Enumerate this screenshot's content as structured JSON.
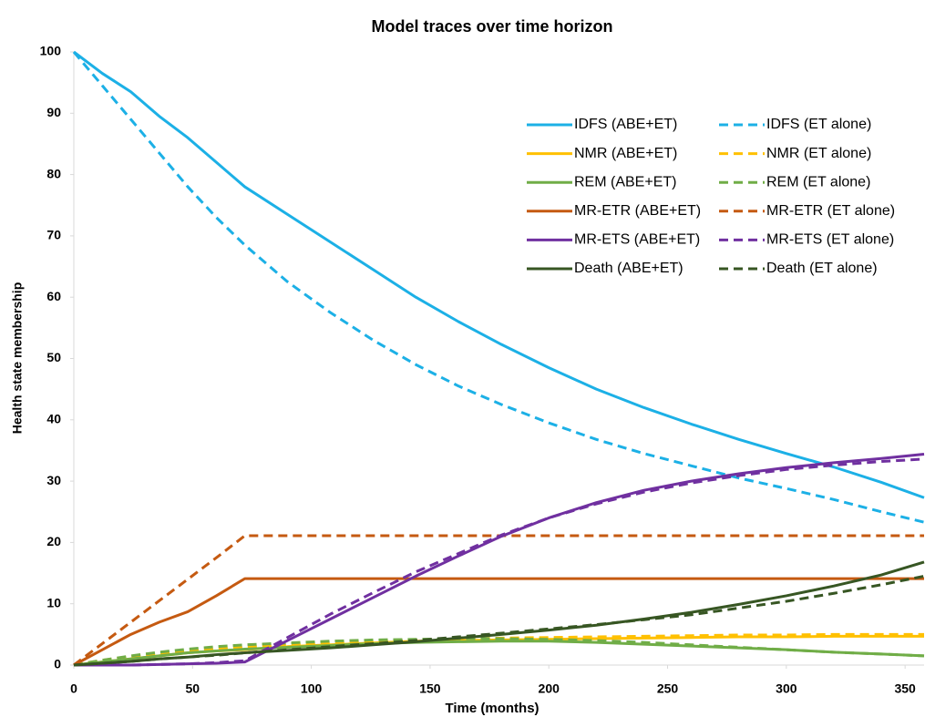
{
  "chart_data": {
    "type": "line",
    "title": "Model traces over time horizon",
    "x_label": "Time (months)",
    "y_label": "Health state membership",
    "x": [
      0,
      12,
      24,
      36,
      48,
      60,
      72,
      90,
      108,
      126,
      144,
      162,
      180,
      200,
      220,
      240,
      260,
      280,
      300,
      320,
      340,
      358
    ],
    "xlim": [
      0,
      358
    ],
    "xticks": [
      0,
      50,
      100,
      150,
      200,
      250,
      300,
      350
    ],
    "ylim": [
      0,
      100
    ],
    "yticks": [
      0,
      10,
      20,
      30,
      40,
      50,
      60,
      70,
      80,
      90,
      100
    ],
    "grid": false,
    "series": [
      {
        "name": "IDFS (ABE+ET)",
        "color": "#1cb0e6",
        "dashed": false,
        "values": [
          100,
          96.5,
          93.5,
          89.5,
          86,
          82,
          78,
          73.5,
          69,
          64.5,
          60,
          56,
          52.3,
          48.5,
          45,
          42,
          39.3,
          36.8,
          34.5,
          32.3,
          29.8,
          27.3
        ]
      },
      {
        "name": "IDFS (ET alone)",
        "color": "#1cb0e6",
        "dashed": true,
        "values": [
          100,
          94.5,
          89,
          83.5,
          78,
          73,
          68.5,
          62.5,
          57.5,
          53,
          49,
          45.5,
          42.5,
          39.5,
          36.8,
          34.5,
          32.5,
          30.5,
          28.8,
          27,
          25,
          23.3
        ]
      },
      {
        "name": "NMR (ABE+ET)",
        "color": "#ffc000",
        "dashed": false,
        "values": [
          0,
          0.5,
          1,
          1.5,
          2,
          2.3,
          2.5,
          3,
          3.3,
          3.6,
          3.9,
          4,
          4.1,
          4.2,
          4.3,
          4.4,
          4.5,
          4.6,
          4.6,
          4.7,
          4.7,
          4.7
        ]
      },
      {
        "name": "NMR (ET alone)",
        "color": "#ffc000",
        "dashed": true,
        "values": [
          0,
          0.8,
          1.4,
          1.9,
          2.3,
          2.6,
          2.9,
          3.3,
          3.6,
          3.9,
          4.1,
          4.3,
          4.4,
          4.5,
          4.6,
          4.7,
          4.8,
          4.9,
          4.9,
          5,
          5,
          5
        ]
      },
      {
        "name": "REM (ABE+ET)",
        "color": "#70ad47",
        "dashed": false,
        "values": [
          0,
          0.5,
          1,
          1.5,
          2,
          2.3,
          2.6,
          2.9,
          3.2,
          3.5,
          3.7,
          3.8,
          3.9,
          3.9,
          3.7,
          3.4,
          3.1,
          2.8,
          2.5,
          2.1,
          1.8,
          1.5
        ]
      },
      {
        "name": "REM (ET alone)",
        "color": "#70ad47",
        "dashed": true,
        "values": [
          0,
          0.8,
          1.5,
          2.1,
          2.6,
          3,
          3.3,
          3.6,
          3.9,
          4.1,
          4.2,
          4.3,
          4.3,
          4.2,
          4,
          3.7,
          3.3,
          2.9,
          2.5,
          2.1,
          1.8,
          1.5
        ]
      },
      {
        "name": "MR-ETR (ABE+ET)",
        "color": "#c55a11",
        "dashed": false,
        "values": [
          0,
          2.5,
          5,
          7,
          8.7,
          11.3,
          14.1,
          14.1,
          14.1,
          14.1,
          14.1,
          14.1,
          14.1,
          14.1,
          14.1,
          14.1,
          14.1,
          14.1,
          14.1,
          14.1,
          14.1,
          14.1
        ]
      },
      {
        "name": "MR-ETR (ET alone)",
        "color": "#c55a11",
        "dashed": true,
        "values": [
          0,
          3.5,
          7,
          10.5,
          14,
          17.5,
          21.1,
          21.1,
          21.1,
          21.1,
          21.1,
          21.1,
          21.1,
          21.1,
          21.1,
          21.1,
          21.1,
          21.1,
          21.1,
          21.1,
          21.1,
          21.1
        ]
      },
      {
        "name": "MR-ETS (ABE+ET)",
        "color": "#7030a0",
        "dashed": false,
        "values": [
          0,
          0,
          0,
          0.1,
          0.2,
          0.3,
          0.5,
          4,
          7.5,
          11,
          14.5,
          17.8,
          21,
          24,
          26.5,
          28.5,
          30,
          31.2,
          32.2,
          33,
          33.7,
          34.4
        ]
      },
      {
        "name": "MR-ETS (ET alone)",
        "color": "#7030a0",
        "dashed": true,
        "values": [
          0,
          0,
          0,
          0.1,
          0.2,
          0.4,
          0.7,
          4.5,
          8.3,
          11.8,
          15.2,
          18.2,
          21.2,
          24,
          26.3,
          28.2,
          29.7,
          30.9,
          31.9,
          32.6,
          33.2,
          33.6
        ]
      },
      {
        "name": "Death (ABE+ET)",
        "color": "#375623",
        "dashed": false,
        "values": [
          0,
          0.3,
          0.6,
          1,
          1.3,
          1.7,
          2,
          2.4,
          2.8,
          3.3,
          3.8,
          4.4,
          5,
          5.7,
          6.5,
          7.5,
          8.6,
          9.9,
          11.3,
          12.9,
          14.7,
          16.8
        ]
      },
      {
        "name": "Death (ET alone)",
        "color": "#375623",
        "dashed": true,
        "values": [
          0,
          0.3,
          0.6,
          1,
          1.3,
          1.6,
          2,
          2.5,
          3,
          3.5,
          4,
          4.6,
          5.2,
          5.9,
          6.6,
          7.4,
          8.2,
          9.3,
          10.4,
          11.7,
          13.1,
          14.5
        ]
      }
    ]
  }
}
